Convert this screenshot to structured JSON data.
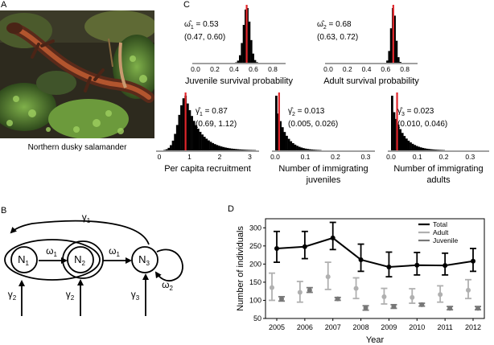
{
  "panels": {
    "a": "A",
    "b": "B",
    "c": "C",
    "d": "D"
  },
  "photo_caption": "Northern dusky salamander",
  "histograms": [
    {
      "est_symbol": "ω̂",
      "est_sub": "1",
      "est_value": "= 0.53",
      "ci": "(0.47, 0.60)",
      "estimate": 0.53,
      "xlim": [
        0,
        0.9
      ],
      "ticks": [
        "0.0",
        "0.2",
        "0.4",
        "0.6",
        "0.8"
      ],
      "label_lines": [
        "Juvenile survival probability"
      ],
      "shape": "normal",
      "spread": 0.035
    },
    {
      "est_symbol": "ω̂",
      "est_sub": "2",
      "est_value": "= 0.68",
      "ci": "(0.63, 0.72)",
      "estimate": 0.68,
      "xlim": [
        0,
        0.9
      ],
      "ticks": [
        "0.0",
        "0.2",
        "0.4",
        "0.6",
        "0.8"
      ],
      "label_lines": [
        "Adult survival probability"
      ],
      "shape": "normal",
      "spread": 0.025
    },
    {
      "est_symbol": "γ̂",
      "est_sub": "1",
      "est_value": "= 0.87",
      "ci": "(0.69, 1.12)",
      "estimate": 0.87,
      "xlim": [
        0,
        3.2
      ],
      "ticks": [
        "0",
        "1",
        "2",
        "3"
      ],
      "label_lines": [
        "Per capita recruitment"
      ],
      "shape": "skew",
      "spread": 0.5
    },
    {
      "est_symbol": "γ̂",
      "est_sub": "2",
      "est_value": "= 0.013",
      "ci": "(0.005, 0.026)",
      "estimate": 0.013,
      "xlim": [
        0,
        0.32
      ],
      "ticks": [
        "0.0",
        "0.1",
        "0.2",
        "0.3"
      ],
      "label_lines": [
        "Number of immigrating",
        "juveniles"
      ],
      "shape": "decay",
      "spread": 0.03
    },
    {
      "est_symbol": "γ̂",
      "est_sub": "3",
      "est_value": "= 0.023",
      "ci": "(0.010, 0.046)",
      "estimate": 0.023,
      "xlim": [
        0,
        0.36
      ],
      "ticks": [
        "0.0",
        "0.1",
        "0.2",
        "0.3"
      ],
      "label_lines": [
        "Number of immigrating",
        "adults"
      ],
      "shape": "decay",
      "spread": 0.04
    }
  ],
  "diagram": {
    "nodes": [
      {
        "symbol": "N",
        "sub": "1"
      },
      {
        "symbol": "N",
        "sub": "2"
      },
      {
        "symbol": "N",
        "sub": "3"
      }
    ],
    "edges": [
      {
        "symbol": "ω",
        "sub": "1"
      },
      {
        "symbol": "ω",
        "sub": "1"
      },
      {
        "symbol": "γ",
        "sub": "1"
      },
      {
        "symbol": "ω",
        "sub": "2"
      },
      {
        "symbol": "γ",
        "sub": "2"
      },
      {
        "symbol": "γ",
        "sub": "2"
      },
      {
        "symbol": "γ",
        "sub": "3"
      }
    ]
  },
  "chart_data": {
    "type": "line",
    "xlabel": "Year",
    "ylabel": "Number of individuals",
    "categories": [
      "2005",
      "2006",
      "2007",
      "2008",
      "2009",
      "2010",
      "2011",
      "2012"
    ],
    "ylim": [
      50,
      325
    ],
    "yticks": [
      50,
      100,
      150,
      200,
      250,
      300
    ],
    "legend_position": "top-right",
    "series": [
      {
        "name": "Total",
        "color": "#000000",
        "connected": true,
        "values": [
          243,
          248,
          272,
          212,
          192,
          197,
          196,
          208
        ],
        "lower": [
          205,
          215,
          240,
          180,
          165,
          170,
          170,
          180
        ],
        "upper": [
          290,
          290,
          315,
          255,
          233,
          232,
          230,
          243
        ]
      },
      {
        "name": "Adult",
        "color": "#b0b0b0",
        "connected": false,
        "values": [
          135,
          122,
          165,
          133,
          110,
          108,
          116,
          128
        ],
        "lower": [
          100,
          95,
          130,
          105,
          90,
          92,
          95,
          105
        ],
        "upper": [
          175,
          152,
          205,
          162,
          133,
          132,
          140,
          157
        ]
      },
      {
        "name": "Juvenile",
        "color": "#777777",
        "connected": false,
        "values": [
          104,
          128,
          104,
          79,
          83,
          88,
          78,
          78
        ],
        "lower": [
          98,
          122,
          100,
          73,
          78,
          84,
          74,
          74
        ],
        "upper": [
          110,
          135,
          108,
          85,
          88,
          92,
          83,
          83
        ]
      }
    ]
  }
}
